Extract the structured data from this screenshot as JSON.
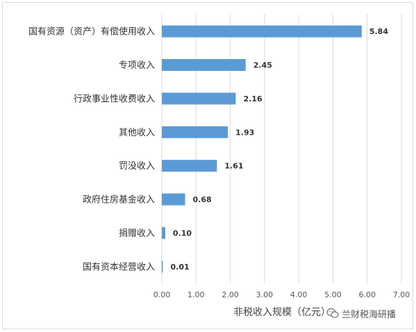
{
  "chart_data": {
    "type": "bar",
    "orientation": "horizontal",
    "categories": [
      "国有资源（资产）有偿使用收入",
      "专项收入",
      "行政事业性收费收入",
      "其他收入",
      "罚没收入",
      "政府住房基金收入",
      "捐赠收入",
      "国有资本经营收入"
    ],
    "values": [
      5.84,
      2.45,
      2.16,
      1.93,
      1.61,
      0.68,
      0.1,
      0.01
    ],
    "value_labels": [
      "5.84",
      "2.45",
      "2.16",
      "1.93",
      "1.61",
      "0.68",
      "0.10",
      "0.01"
    ],
    "xlabel": "非税收入规模（亿元）",
    "xlim": [
      0,
      7
    ],
    "xticks": [
      "0.00",
      "1.00",
      "2.00",
      "3.00",
      "4.00",
      "5.00",
      "6.00",
      "7.00"
    ],
    "grid": true,
    "legend": "none",
    "bar_color": "#5b9bd5",
    "grid_color": "#d9d9d9"
  },
  "watermark": {
    "text": "兰财税海研播",
    "icon": "wechat-icon"
  }
}
